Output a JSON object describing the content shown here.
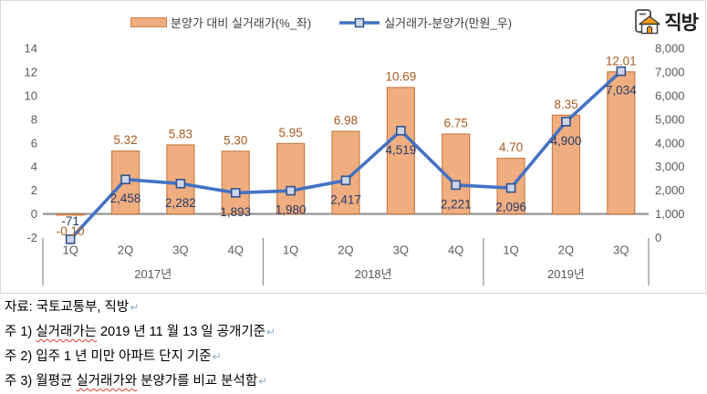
{
  "legend": {
    "bar_label": "분양가 대비 실거래가(%_좌)",
    "line_label": "실거래가-분양가(만원_우)"
  },
  "logo": {
    "text": "직방",
    "icon": "zigbang-house-icon"
  },
  "chart_data": {
    "type": "bar+line combo",
    "categories": [
      "1Q",
      "2Q",
      "3Q",
      "4Q",
      "1Q",
      "2Q",
      "3Q",
      "4Q",
      "1Q",
      "2Q",
      "3Q"
    ],
    "groups": [
      {
        "label": "2017년",
        "span": 4
      },
      {
        "label": "2018년",
        "span": 4
      },
      {
        "label": "2019년",
        "span": 3
      }
    ],
    "series": [
      {
        "name": "분양가 대비 실거래가(%_좌)",
        "type": "bar",
        "axis": "left",
        "values": [
          -0.1,
          5.32,
          5.83,
          5.3,
          5.95,
          6.98,
          10.69,
          6.75,
          4.7,
          8.35,
          12.01
        ],
        "labels": [
          "-0.10",
          "5.32",
          "5.83",
          "5.30",
          "5.95",
          "6.98",
          "10.69",
          "6.75",
          "4.70",
          "8.35",
          "12.01"
        ],
        "fill": "#F0AE80",
        "stroke": "#C97E49",
        "label_color": "#A85B21"
      },
      {
        "name": "실거래가-분양가(만원_우)",
        "type": "line",
        "axis": "right",
        "values": [
          -71,
          2458,
          2282,
          1893,
          1980,
          2417,
          4519,
          2221,
          2096,
          4900,
          7034
        ],
        "labels": [
          "-71",
          "2,458",
          "2,282",
          "1,893",
          "1,980",
          "2,417",
          "4,519",
          "2,221",
          "2,096",
          "4,900",
          "7,034"
        ],
        "color": "#4472C4",
        "marker_fill": "#CDD6E8",
        "marker_stroke": "#31538F",
        "label_color": "#243B6B"
      }
    ],
    "left_axis": {
      "min": -2,
      "max": 14,
      "step": 2,
      "ticks": [
        "14",
        "12",
        "10",
        "8",
        "6",
        "4",
        "2",
        "0",
        "-2"
      ]
    },
    "right_axis": {
      "min": 0,
      "max": 8000,
      "step": 1000,
      "ticks": [
        "8,000",
        "7,000",
        "6,000",
        "5,000",
        "4,000",
        "3,000",
        "2,000",
        "1,000",
        "0"
      ]
    },
    "grid": "zero-line only",
    "legend_position": "top"
  },
  "footer": {
    "source": "자료: 국토교통부, 직방",
    "notes": [
      {
        "pre": "주 1) ",
        "wavy": "실거래가는",
        "post": " 2019 년 11 월 13 일 공개기준"
      },
      {
        "pre": "주 2) ",
        "wavy": "",
        "post": "입주 1 년 미만 아파트 단지 기준"
      },
      {
        "pre": "주 3) 월평균 ",
        "wavy": "실거래가와",
        "post": " 분양가를 비교 분석함"
      }
    ],
    "return_mark": "↵"
  },
  "colors": {
    "bar_fill": "#F0AE80",
    "bar_stroke": "#C97E49",
    "line": "#4472C4",
    "marker_fill": "#CDD6E8",
    "marker_stroke": "#31538F",
    "bar_label": "#A85B21",
    "line_label": "#243B6B",
    "axis_text": "#595959",
    "axis_line": "#9B9B9B",
    "divider": "#8C8C8C",
    "chart_border": "#D9D9D9",
    "logo_orange": "#F89C1C"
  }
}
